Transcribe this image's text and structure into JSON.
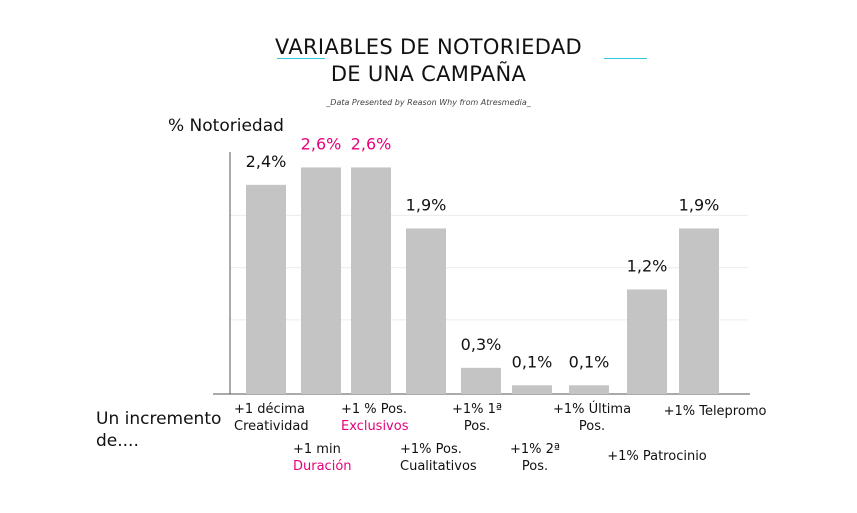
{
  "title": {
    "line1": "VARIABLES DE NOTORIEDAD",
    "line2": "DE UNA CAMPAÑA"
  },
  "subtitle": "_Data Presented by Reason Why from Atresmedia_",
  "accent_color": "#35c7de",
  "highlight_color": "#e6007e",
  "bar_color": "#c4c4c4",
  "chart_data": {
    "type": "bar",
    "ylabel": "% Notoriedad",
    "xlabel": "Un incremento de....",
    "ylim": [
      0,
      2.8
    ],
    "grid": true,
    "categories": [
      {
        "line1": "+1 décima",
        "line2": "Creatividad",
        "highlight": false
      },
      {
        "line1": "+1 min",
        "line2": "Duración",
        "highlight": true
      },
      {
        "line1": "+1 % Pos.",
        "line2": "Exclusivos",
        "highlight": true
      },
      {
        "line1": "+1% Pos.",
        "line2": "Cualitativos",
        "highlight": false
      },
      {
        "line1": "+1% 1ª",
        "line2": "Pos.",
        "highlight": false
      },
      {
        "line1": "+1% 2ª",
        "line2": "Pos.",
        "highlight": false
      },
      {
        "line1": "+1% Última",
        "line2": "Pos.",
        "highlight": false
      },
      {
        "line1": "+1% Patrocinio",
        "line2": "",
        "highlight": false
      },
      {
        "line1": "+1% Telepromo",
        "line2": "",
        "highlight": false
      }
    ],
    "values": [
      2.4,
      2.6,
      2.6,
      1.9,
      0.3,
      0.1,
      0.1,
      1.2,
      1.9
    ],
    "value_labels": [
      "2,4%",
      "2,6%",
      "2,6%",
      "1,9%",
      "0,3%",
      "0,1%",
      "0,1%",
      "1,2%",
      "1,9%"
    ]
  }
}
